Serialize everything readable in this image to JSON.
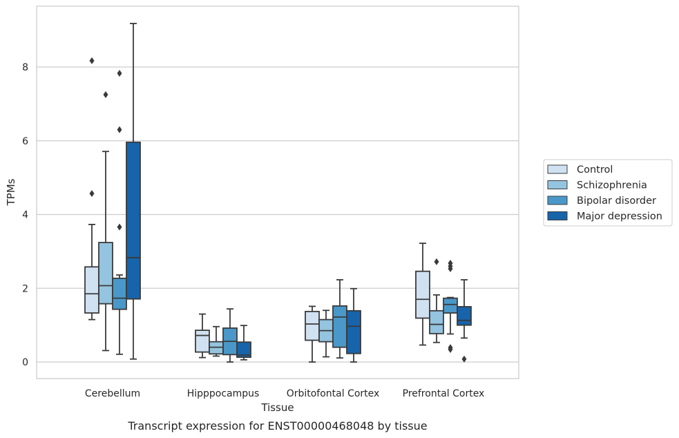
{
  "caption": "Transcript expression for ENST00000468048 by tissue",
  "colors": {
    "Control": "#d0e1f2",
    "Schizophrenia": "#94c4df",
    "Bipolar disorder": "#4a98c9",
    "Major depression": "#1764ab",
    "edge": "#3a3a3a",
    "grid": "#cccccc"
  },
  "chart_data": {
    "type": "box",
    "xlabel": "Tissue",
    "ylabel": "TPMs",
    "ylim": [
      -0.45,
      9.65
    ],
    "yticks": [
      0,
      2,
      4,
      6,
      8
    ],
    "grid": "horizontal",
    "legend_placement": "right (outside)",
    "categories": [
      "Cerebellum",
      "Hipppocampus",
      "Orbitofontal Cortex",
      "Prefrontal Cortex"
    ],
    "series": [
      {
        "name": "Control",
        "boxes": [
          {
            "whislo": 1.15,
            "q1": 1.33,
            "med": 1.85,
            "q3": 2.58,
            "whishi": 3.73,
            "fliers": [
              4.57,
              8.17
            ]
          },
          {
            "whislo": 0.12,
            "q1": 0.27,
            "med": 0.72,
            "q3": 0.86,
            "whishi": 1.3,
            "fliers": []
          },
          {
            "whislo": 0.0,
            "q1": 0.59,
            "med": 1.03,
            "q3": 1.37,
            "whishi": 1.51,
            "fliers": []
          },
          {
            "whislo": 0.46,
            "q1": 1.19,
            "med": 1.7,
            "q3": 2.46,
            "whishi": 3.22,
            "fliers": []
          }
        ]
      },
      {
        "name": "Schizophrenia",
        "boxes": [
          {
            "whislo": 0.31,
            "q1": 1.58,
            "med": 2.07,
            "q3": 3.24,
            "whishi": 5.71,
            "fliers": [
              7.25
            ]
          },
          {
            "whislo": 0.16,
            "q1": 0.22,
            "med": 0.4,
            "q3": 0.55,
            "whishi": 0.96,
            "fliers": []
          },
          {
            "whislo": 0.14,
            "q1": 0.55,
            "med": 0.85,
            "q3": 1.15,
            "whishi": 1.4,
            "fliers": []
          },
          {
            "whislo": 0.53,
            "q1": 0.77,
            "med": 1.02,
            "q3": 1.39,
            "whishi": 1.82,
            "fliers": [
              2.72
            ]
          }
        ]
      },
      {
        "name": "Bipolar disorder",
        "boxes": [
          {
            "whislo": 0.21,
            "q1": 1.43,
            "med": 1.73,
            "q3": 2.27,
            "whishi": 2.36,
            "fliers": [
              3.66,
              6.3,
              7.83
            ]
          },
          {
            "whislo": 0.0,
            "q1": 0.2,
            "med": 0.56,
            "q3": 0.92,
            "whishi": 1.44,
            "fliers": []
          },
          {
            "whislo": 0.11,
            "q1": 0.4,
            "med": 1.22,
            "q3": 1.52,
            "whishi": 2.23,
            "fliers": []
          },
          {
            "whislo": 0.76,
            "q1": 1.33,
            "med": 1.56,
            "q3": 1.73,
            "whishi": 1.75,
            "fliers": [
              0.34,
              0.39,
              2.53,
              2.6,
              2.68
            ]
          }
        ]
      },
      {
        "name": "Major depression",
        "boxes": [
          {
            "whislo": 0.08,
            "q1": 1.71,
            "med": 2.83,
            "q3": 5.96,
            "whishi": 9.18,
            "fliers": []
          },
          {
            "whislo": 0.06,
            "q1": 0.13,
            "med": 0.19,
            "q3": 0.54,
            "whishi": 0.99,
            "fliers": []
          },
          {
            "whislo": 0.0,
            "q1": 0.23,
            "med": 0.97,
            "q3": 1.39,
            "whishi": 1.99,
            "fliers": []
          },
          {
            "whislo": 0.65,
            "q1": 1.0,
            "med": 1.13,
            "q3": 1.5,
            "whishi": 2.23,
            "fliers": [
              0.08
            ]
          }
        ]
      }
    ]
  }
}
